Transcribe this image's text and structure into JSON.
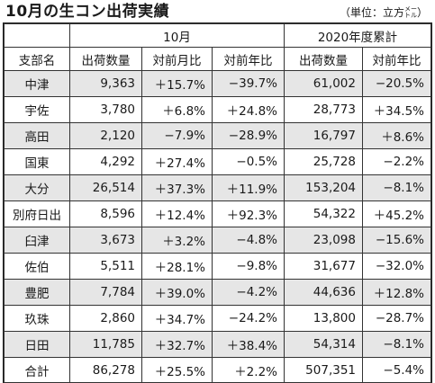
{
  "title": "10月の生コン出荷実績",
  "unit": {
    "prefix": "（単位：立方",
    "small": "メートル",
    "suffix": "）"
  },
  "header": {
    "group_month": "10月",
    "group_year": "2020年度累計",
    "col_region": "支部名",
    "col_shipments": "出荷数量",
    "col_mom": "対前月比",
    "col_yoy": "対前年比",
    "col_cum_shipments": "出荷数量",
    "col_cum_yoy": "対前年比"
  },
  "rows": [
    {
      "name": "中津",
      "shipments": "9,363",
      "mom": "＋15.7%",
      "yoy": "−39.7%",
      "cum": "61,002",
      "cum_yoy": "−20.5%"
    },
    {
      "name": "宇佐",
      "shipments": "3,780",
      "mom": "＋6.8%",
      "yoy": "＋24.8%",
      "cum": "28,773",
      "cum_yoy": "＋34.5%"
    },
    {
      "name": "高田",
      "shipments": "2,120",
      "mom": "−7.9%",
      "yoy": "−28.9%",
      "cum": "16,797",
      "cum_yoy": "＋8.6%"
    },
    {
      "name": "国東",
      "shipments": "4,292",
      "mom": "＋27.4%",
      "yoy": "−0.5%",
      "cum": "25,728",
      "cum_yoy": "−2.2%"
    },
    {
      "name": "大分",
      "shipments": "26,514",
      "mom": "＋37.3%",
      "yoy": "＋11.9%",
      "cum": "153,204",
      "cum_yoy": "−8.1%"
    },
    {
      "name": "別府日出",
      "shipments": "8,596",
      "mom": "＋12.4%",
      "yoy": "＋92.3%",
      "cum": "54,322",
      "cum_yoy": "＋45.2%"
    },
    {
      "name": "臼津",
      "shipments": "3,673",
      "mom": "＋3.2%",
      "yoy": "−4.8%",
      "cum": "23,098",
      "cum_yoy": "−15.6%"
    },
    {
      "name": "佐伯",
      "shipments": "5,511",
      "mom": "＋28.1%",
      "yoy": "−9.8%",
      "cum": "31,677",
      "cum_yoy": "−32.0%"
    },
    {
      "name": "豊肥",
      "shipments": "7,784",
      "mom": "＋39.0%",
      "yoy": "−4.2%",
      "cum": "44,636",
      "cum_yoy": "＋12.8%"
    },
    {
      "name": "玖珠",
      "shipments": "2,860",
      "mom": "＋34.7%",
      "yoy": "−24.2%",
      "cum": "13,800",
      "cum_yoy": "−28.7%"
    },
    {
      "name": "日田",
      "shipments": "11,785",
      "mom": "＋32.7%",
      "yoy": "＋38.4%",
      "cum": "54,314",
      "cum_yoy": "−8.1%"
    }
  ],
  "total": {
    "name": "合計",
    "shipments": "86,278",
    "mom": "＋25.5%",
    "yoy": "＋2.2%",
    "cum": "507,351",
    "cum_yoy": "−5.4%"
  }
}
